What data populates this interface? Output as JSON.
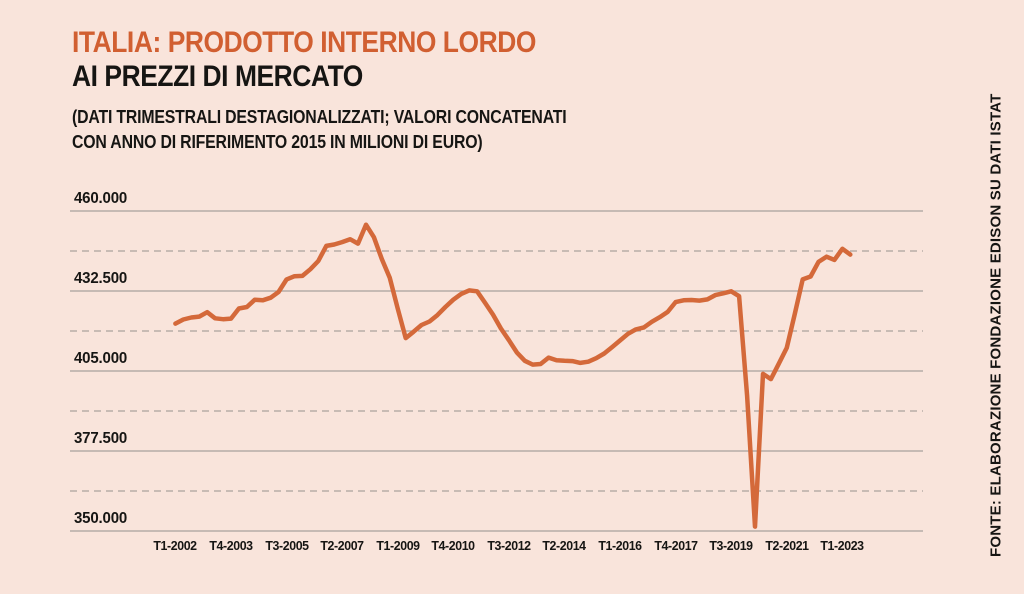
{
  "header": {
    "title": "ITALIA: PRODOTTO INTERNO LORDO",
    "subtitle": "AI PREZZI DI MERCATO",
    "note_line1": "(DATI TRIMESTRALI DESTAGIONALIZZATI; VALORI CONCATENATI",
    "note_line2": "CON ANNO DI RIFERIMENTO 2015 IN MILIONI DI EURO)"
  },
  "source": "FONTE: ELABORAZIONE FONDAZIONE EDISON SU DATI ISTAT",
  "colors": {
    "background": "#f9e4db",
    "accent": "#d15f31",
    "ink": "#161513",
    "line": "#d4693a",
    "grid_solid": "#a9a19c",
    "grid_dashed": "#aaa29d"
  },
  "chart_data": {
    "type": "line",
    "title": "ITALIA: PRODOTTO INTERNO LORDO AI PREZZI DI MERCATO",
    "ylabel": "",
    "xlabel": "",
    "frequency": "quarterly",
    "x_start": "T1-2002",
    "x_end": "T2-2023",
    "x_tick_labels": [
      "T1-2002",
      "T4-2003",
      "T3-2005",
      "T2-2007",
      "T1-2009",
      "T4-2010",
      "T3-2012",
      "T2-2014",
      "T1-2016",
      "T4-2017",
      "T3-2019",
      "T2-2021",
      "T1-2023"
    ],
    "x_tick_indices": [
      0,
      7,
      14,
      21,
      28,
      35,
      42,
      49,
      56,
      63,
      70,
      77,
      84
    ],
    "y_tick_labels": [
      "460.000",
      "432.500",
      "405.000",
      "377.500",
      "350.000"
    ],
    "y_tick_values": [
      460000,
      432500,
      405000,
      377500,
      350000
    ],
    "y_minor_gridlines": [
      446250,
      418750,
      391250,
      363750
    ],
    "ylim": [
      350000,
      460000
    ],
    "grid": true,
    "legend_position": "none",
    "values": [
      421300,
      422700,
      423400,
      423700,
      425200,
      423100,
      422800,
      423000,
      426500,
      427000,
      429500,
      429300,
      430200,
      432200,
      436500,
      437600,
      437700,
      440000,
      442800,
      448000,
      448500,
      449300,
      450300,
      448800,
      455300,
      451000,
      443500,
      437000,
      426500,
      416300,
      418500,
      420800,
      422000,
      424200,
      427000,
      429500,
      431500,
      432700,
      432400,
      428400,
      424400,
      419600,
      415600,
      411400,
      408500,
      407200,
      407400,
      409600,
      408700,
      408500,
      408400,
      407800,
      408200,
      409400,
      411000,
      413200,
      415500,
      417800,
      419300,
      420000,
      421900,
      423500,
      425300,
      428700,
      429300,
      429400,
      429200,
      429600,
      431100,
      431700,
      432400,
      430700,
      396500,
      351500,
      404000,
      402200,
      407500,
      413000,
      424500,
      436500,
      437500,
      442500,
      444300,
      443200,
      447000,
      445000
    ]
  }
}
